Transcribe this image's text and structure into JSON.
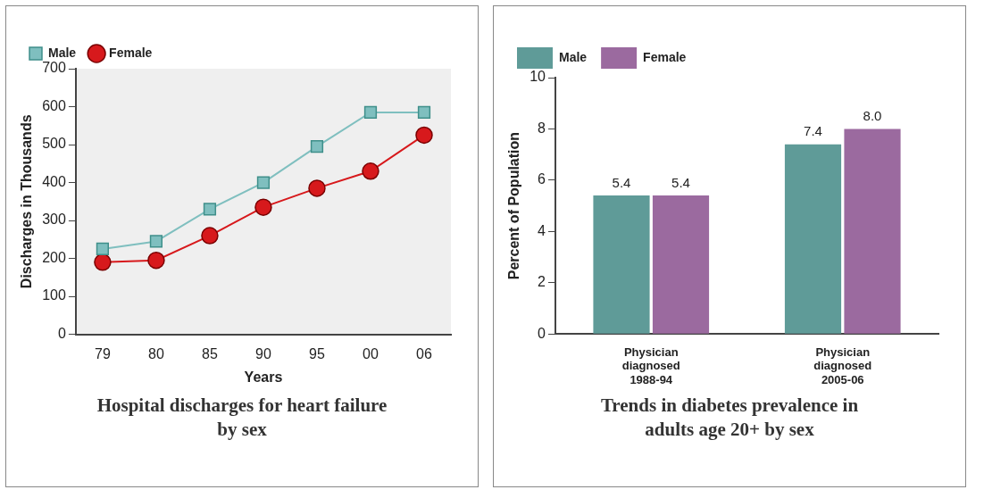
{
  "chart_data": [
    {
      "type": "line",
      "title": "Hospital discharges for heart failure by sex",
      "xlabel": "Years",
      "ylabel": "Discharges in Thousands",
      "categories": [
        "79",
        "80",
        "85",
        "90",
        "95",
        "00",
        "06"
      ],
      "series": [
        {
          "name": "Male",
          "color": "#7fbfbf",
          "marker": "square",
          "values": [
            225,
            245,
            330,
            400,
            495,
            585,
            585
          ]
        },
        {
          "name": "Female",
          "color": "#d7191c",
          "marker": "circle",
          "values": [
            190,
            195,
            260,
            335,
            385,
            430,
            525
          ]
        }
      ],
      "ylim": [
        0,
        700
      ],
      "yticks": [
        0,
        100,
        200,
        300,
        400,
        500,
        600,
        700
      ],
      "grid": false,
      "legend": "top left"
    },
    {
      "type": "bar",
      "title": "Trends in diabetes prevalence in adults age 20+ by sex",
      "ylabel": "Percent of Population",
      "categories": [
        "Physician diagnosed 1988-94",
        "Physician diagnosed 2005-06"
      ],
      "series": [
        {
          "name": "Male",
          "color": "#5f9b98",
          "values": [
            5.4,
            7.4
          ],
          "value_labels": [
            "5.4",
            "7.4"
          ]
        },
        {
          "name": "Female",
          "color": "#9b6a9f",
          "values": [
            5.4,
            8.0
          ],
          "value_labels": [
            "5.4",
            "8.0"
          ]
        }
      ],
      "ylim": [
        0,
        10
      ],
      "yticks": [
        0,
        2,
        4,
        6,
        8,
        10
      ],
      "grid": false,
      "legend": "top left"
    }
  ]
}
